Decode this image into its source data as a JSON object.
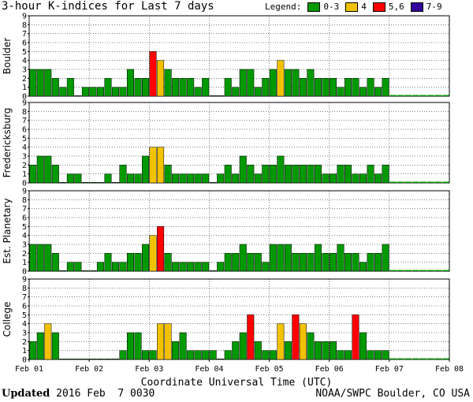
{
  "header": {
    "title": "3-hour K-indices for Last 7 days",
    "legend_label": "Legend:",
    "legend": [
      {
        "label": "0-3",
        "color": "#009900"
      },
      {
        "label": "4",
        "color": "#f2c200"
      },
      {
        "label": "5,6",
        "color": "#ff0000"
      },
      {
        "label": "7-9",
        "color": "#330099"
      }
    ]
  },
  "footer": {
    "updated_label": "Updated",
    "updated_value": " 2016 Feb  7 0030",
    "credit": "NOAA/SWPC Boulder, CO USA"
  },
  "chart_data": {
    "type": "bar",
    "xlabel": "Coordinate Universal Time (UTC)",
    "x_ticks": [
      "Feb 01",
      "Feb 02",
      "Feb 03",
      "Feb 04",
      "Feb 05",
      "Feb 06",
      "Feb 07",
      "Feb 08"
    ],
    "ylim": [
      0,
      9
    ],
    "y_ticks": [
      0,
      1,
      2,
      3,
      4,
      5,
      6,
      7,
      8,
      9
    ],
    "intervals_per_day": 8,
    "series": [
      {
        "name": "Boulder",
        "values": [
          3,
          3,
          3,
          2,
          1,
          2,
          0,
          1,
          1,
          1,
          2,
          1,
          1,
          3,
          2,
          2,
          5,
          4,
          3,
          2,
          2,
          2,
          1,
          2,
          0,
          0,
          2,
          1,
          3,
          3,
          1,
          2,
          3,
          4,
          3,
          3,
          2,
          3,
          2,
          2,
          2,
          1,
          2,
          2,
          1,
          2,
          1,
          2
        ]
      },
      {
        "name": "Fredericksburg",
        "values": [
          2,
          3,
          3,
          2,
          0,
          1,
          1,
          0,
          0,
          0,
          1,
          0,
          2,
          1,
          1,
          3,
          4,
          4,
          2,
          1,
          1,
          1,
          1,
          1,
          0,
          1,
          2,
          1,
          3,
          2,
          1,
          2,
          2,
          3,
          2,
          2,
          2,
          2,
          2,
          1,
          1,
          2,
          2,
          1,
          1,
          2,
          1,
          2
        ]
      },
      {
        "name": "Est. Planetary",
        "values": [
          3,
          3,
          3,
          2,
          0,
          1,
          1,
          0,
          0,
          1,
          2,
          1,
          1,
          2,
          2,
          3,
          4,
          5,
          2,
          1,
          1,
          1,
          1,
          1,
          0,
          1,
          2,
          2,
          3,
          2,
          2,
          1,
          3,
          3,
          3,
          2,
          2,
          2,
          3,
          2,
          2,
          3,
          2,
          2,
          1,
          2,
          2,
          3
        ]
      },
      {
        "name": "College",
        "values": [
          2,
          3,
          4,
          3,
          0,
          0,
          0,
          0,
          0,
          0,
          0,
          0,
          1,
          3,
          3,
          1,
          1,
          4,
          4,
          2,
          3,
          1,
          1,
          1,
          1,
          0,
          1,
          2,
          3,
          5,
          2,
          1,
          1,
          4,
          2,
          5,
          4,
          3,
          2,
          2,
          2,
          1,
          1,
          5,
          3,
          1,
          1,
          1
        ]
      }
    ],
    "color_scale": [
      {
        "max": 3,
        "color": "#009900"
      },
      {
        "max": 4,
        "color": "#f2c200"
      },
      {
        "max": 6,
        "color": "#ff0000"
      },
      {
        "max": 9,
        "color": "#330099"
      }
    ],
    "grid": true
  }
}
